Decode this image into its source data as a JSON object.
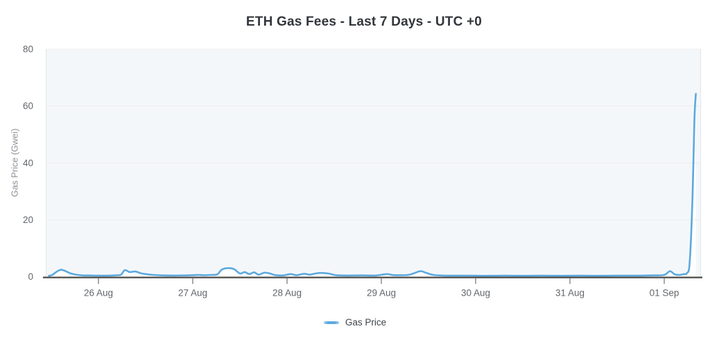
{
  "title": "ETH Gas Fees - Last 7 Days - UTC +0",
  "legend": {
    "items": [
      {
        "label": "Gas Price",
        "color": "#5ca9de"
      }
    ]
  },
  "colors": {
    "line": "#5ca9de",
    "axis": "#55534e",
    "grid": "#ececec",
    "plot_border": "#e3e6ea",
    "plot_bg": "#f4f7fa",
    "tick_text": "#62666b",
    "axis_label_text": "#8e9297",
    "title_text": "#32363b"
  },
  "chart_data": {
    "type": "line",
    "title": "ETH Gas Fees - Last 7 Days - UTC +0",
    "xlabel": "",
    "ylabel": "Gas Price (Gwei)",
    "ylim": [
      0,
      80
    ],
    "y_ticks": [
      0,
      20,
      40,
      60,
      80
    ],
    "x_tick_labels": [
      "26 Aug",
      "27 Aug",
      "28 Aug",
      "29 Aug",
      "30 Aug",
      "31 Aug",
      "01 Sep"
    ],
    "x_unit": "days from 26 Aug 00:00 UTC",
    "grid": "horizontal",
    "legend_position": "bottom",
    "series": [
      {
        "name": "Gas Price",
        "color": "#5ca9de",
        "points": [
          [
            -0.525,
            0.3
          ],
          [
            -0.49,
            0.6
          ],
          [
            -0.44,
            1.8
          ],
          [
            -0.4,
            2.4
          ],
          [
            -0.36,
            2.1
          ],
          [
            -0.3,
            1.2
          ],
          [
            -0.24,
            0.7
          ],
          [
            -0.16,
            0.45
          ],
          [
            -0.06,
            0.4
          ],
          [
            0.04,
            0.35
          ],
          [
            0.14,
            0.4
          ],
          [
            0.2,
            0.5
          ],
          [
            0.24,
            0.7
          ],
          [
            0.28,
            2.3
          ],
          [
            0.33,
            1.6
          ],
          [
            0.39,
            1.8
          ],
          [
            0.45,
            1.2
          ],
          [
            0.5,
            0.9
          ],
          [
            0.58,
            0.6
          ],
          [
            0.68,
            0.45
          ],
          [
            0.8,
            0.4
          ],
          [
            0.92,
            0.45
          ],
          [
            1.0,
            0.5
          ],
          [
            1.06,
            0.6
          ],
          [
            1.12,
            0.5
          ],
          [
            1.2,
            0.6
          ],
          [
            1.26,
            0.8
          ],
          [
            1.31,
            2.5
          ],
          [
            1.38,
            3.0
          ],
          [
            1.44,
            2.6
          ],
          [
            1.5,
            1.1
          ],
          [
            1.55,
            1.6
          ],
          [
            1.6,
            0.9
          ],
          [
            1.65,
            1.5
          ],
          [
            1.7,
            0.7
          ],
          [
            1.76,
            1.4
          ],
          [
            1.82,
            1.1
          ],
          [
            1.88,
            0.5
          ],
          [
            1.96,
            0.45
          ],
          [
            2.04,
            0.9
          ],
          [
            2.1,
            0.5
          ],
          [
            2.18,
            1.0
          ],
          [
            2.24,
            0.7
          ],
          [
            2.3,
            1.1
          ],
          [
            2.36,
            1.3
          ],
          [
            2.44,
            1.1
          ],
          [
            2.52,
            0.5
          ],
          [
            2.64,
            0.4
          ],
          [
            2.8,
            0.45
          ],
          [
            2.94,
            0.4
          ],
          [
            3.06,
            0.9
          ],
          [
            3.12,
            0.55
          ],
          [
            3.2,
            0.5
          ],
          [
            3.3,
            0.7
          ],
          [
            3.41,
            1.9
          ],
          [
            3.47,
            1.4
          ],
          [
            3.55,
            0.6
          ],
          [
            3.66,
            0.4
          ],
          [
            3.8,
            0.35
          ],
          [
            3.94,
            0.35
          ],
          [
            4.1,
            0.3
          ],
          [
            4.3,
            0.35
          ],
          [
            4.5,
            0.3
          ],
          [
            4.7,
            0.35
          ],
          [
            4.9,
            0.3
          ],
          [
            5.1,
            0.35
          ],
          [
            5.3,
            0.3
          ],
          [
            5.5,
            0.35
          ],
          [
            5.7,
            0.35
          ],
          [
            5.88,
            0.45
          ],
          [
            6.0,
            0.6
          ],
          [
            6.06,
            1.9
          ],
          [
            6.11,
            0.8
          ],
          [
            6.16,
            0.6
          ],
          [
            6.21,
            0.9
          ],
          [
            6.24,
            1.2
          ],
          [
            6.27,
            5
          ],
          [
            6.3,
            28
          ],
          [
            6.32,
            55
          ],
          [
            6.335,
            64.3
          ]
        ]
      }
    ]
  }
}
